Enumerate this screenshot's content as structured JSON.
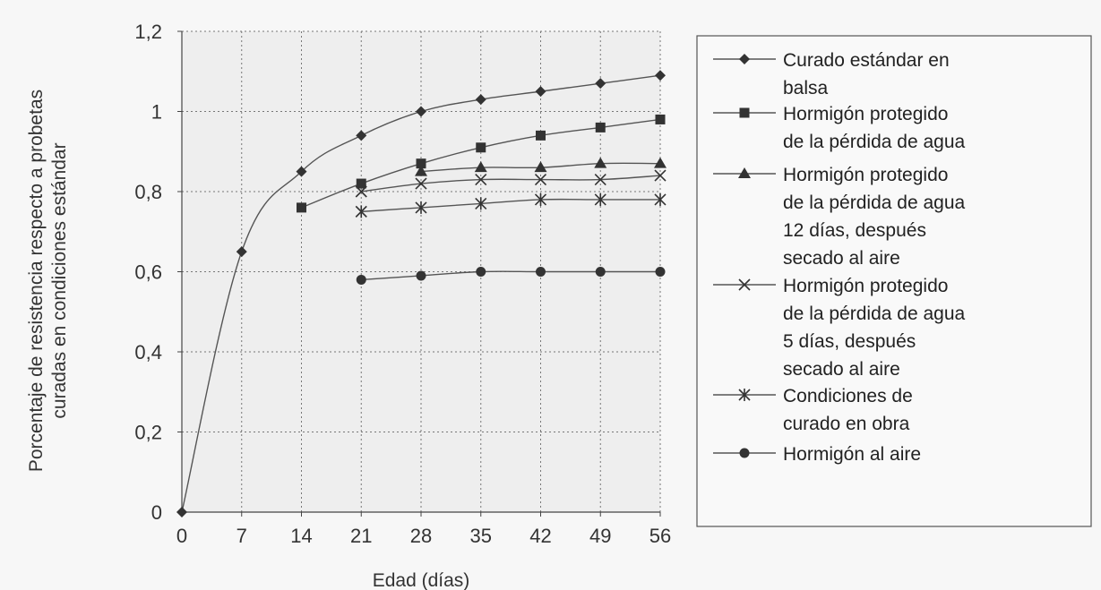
{
  "chart_data": {
    "type": "line",
    "xlabel": "Edad (días)",
    "ylabel": "Porcentaje de resistencia respecto a probetas curadas en condiciones estándar",
    "ylabel_lines": [
      "Porcentaje de resistencia respecto a probetas",
      "curadas en condiciones estándar"
    ],
    "xlim": [
      0,
      56
    ],
    "ylim": [
      0,
      1.2
    ],
    "x_ticks": [
      0,
      7,
      14,
      21,
      28,
      35,
      42,
      49,
      56
    ],
    "x_tick_labels": [
      "0",
      "7",
      "14",
      "21",
      "28",
      "35",
      "42",
      "49",
      "56"
    ],
    "y_ticks": [
      0,
      0.2,
      0.4,
      0.6,
      0.8,
      1.0,
      1.2
    ],
    "y_tick_labels": [
      "0",
      "0,2",
      "0,4",
      "0,6",
      "0,8",
      "1",
      "1,2"
    ],
    "grid": true,
    "legend_position": "right",
    "series": [
      {
        "name": "Curado estándar en balsa",
        "legend_lines": [
          "Curado estándar en",
          "balsa"
        ],
        "marker": "diamond",
        "x": [
          0,
          7,
          14,
          21,
          28,
          35,
          42,
          49,
          56
        ],
        "y": [
          0,
          0.65,
          0.85,
          0.94,
          1.0,
          1.03,
          1.05,
          1.07,
          1.09
        ]
      },
      {
        "name": "Hormigón protegido de la pérdida de agua",
        "legend_lines": [
          "Hormigón protegido",
          "de la pérdida de agua"
        ],
        "marker": "square",
        "x": [
          14,
          21,
          28,
          35,
          42,
          49,
          56
        ],
        "y": [
          0.76,
          0.82,
          0.87,
          0.91,
          0.94,
          0.96,
          0.98
        ]
      },
      {
        "name": "Hormigón protegido de la pérdida de agua 12 días, después secado al aire",
        "legend_lines": [
          "Hormigón protegido",
          "de la pérdida de agua",
          "12 días, después",
          "secado al aire"
        ],
        "marker": "triangle",
        "x": [
          28,
          35,
          42,
          49,
          56
        ],
        "y": [
          0.85,
          0.86,
          0.86,
          0.87,
          0.87
        ]
      },
      {
        "name": "Hormigón protegido de la pérdida de agua 5 días, después secado al aire",
        "legend_lines": [
          "Hormigón protegido",
          "de la pérdida de agua",
          "5 días, después",
          "secado al aire"
        ],
        "marker": "x",
        "x": [
          21,
          28,
          35,
          42,
          49,
          56
        ],
        "y": [
          0.8,
          0.82,
          0.83,
          0.83,
          0.83,
          0.84
        ]
      },
      {
        "name": "Condiciones de curado en obra",
        "legend_lines": [
          "Condiciones de",
          "curado en obra"
        ],
        "marker": "star",
        "x": [
          21,
          28,
          35,
          42,
          49,
          56
        ],
        "y": [
          0.75,
          0.76,
          0.77,
          0.78,
          0.78,
          0.78
        ]
      },
      {
        "name": "Hormigón al aire",
        "legend_lines": [
          "Hormigón al aire"
        ],
        "marker": "circle",
        "x": [
          21,
          28,
          35,
          42,
          49,
          56
        ],
        "y": [
          0.58,
          0.59,
          0.6,
          0.6,
          0.6,
          0.6
        ]
      }
    ]
  },
  "colors": {
    "line": "#555555",
    "marker": "#333333",
    "grid": "#777777",
    "plot_bg": "#eeeeee",
    "legend_bg": "#f9f9f9"
  }
}
